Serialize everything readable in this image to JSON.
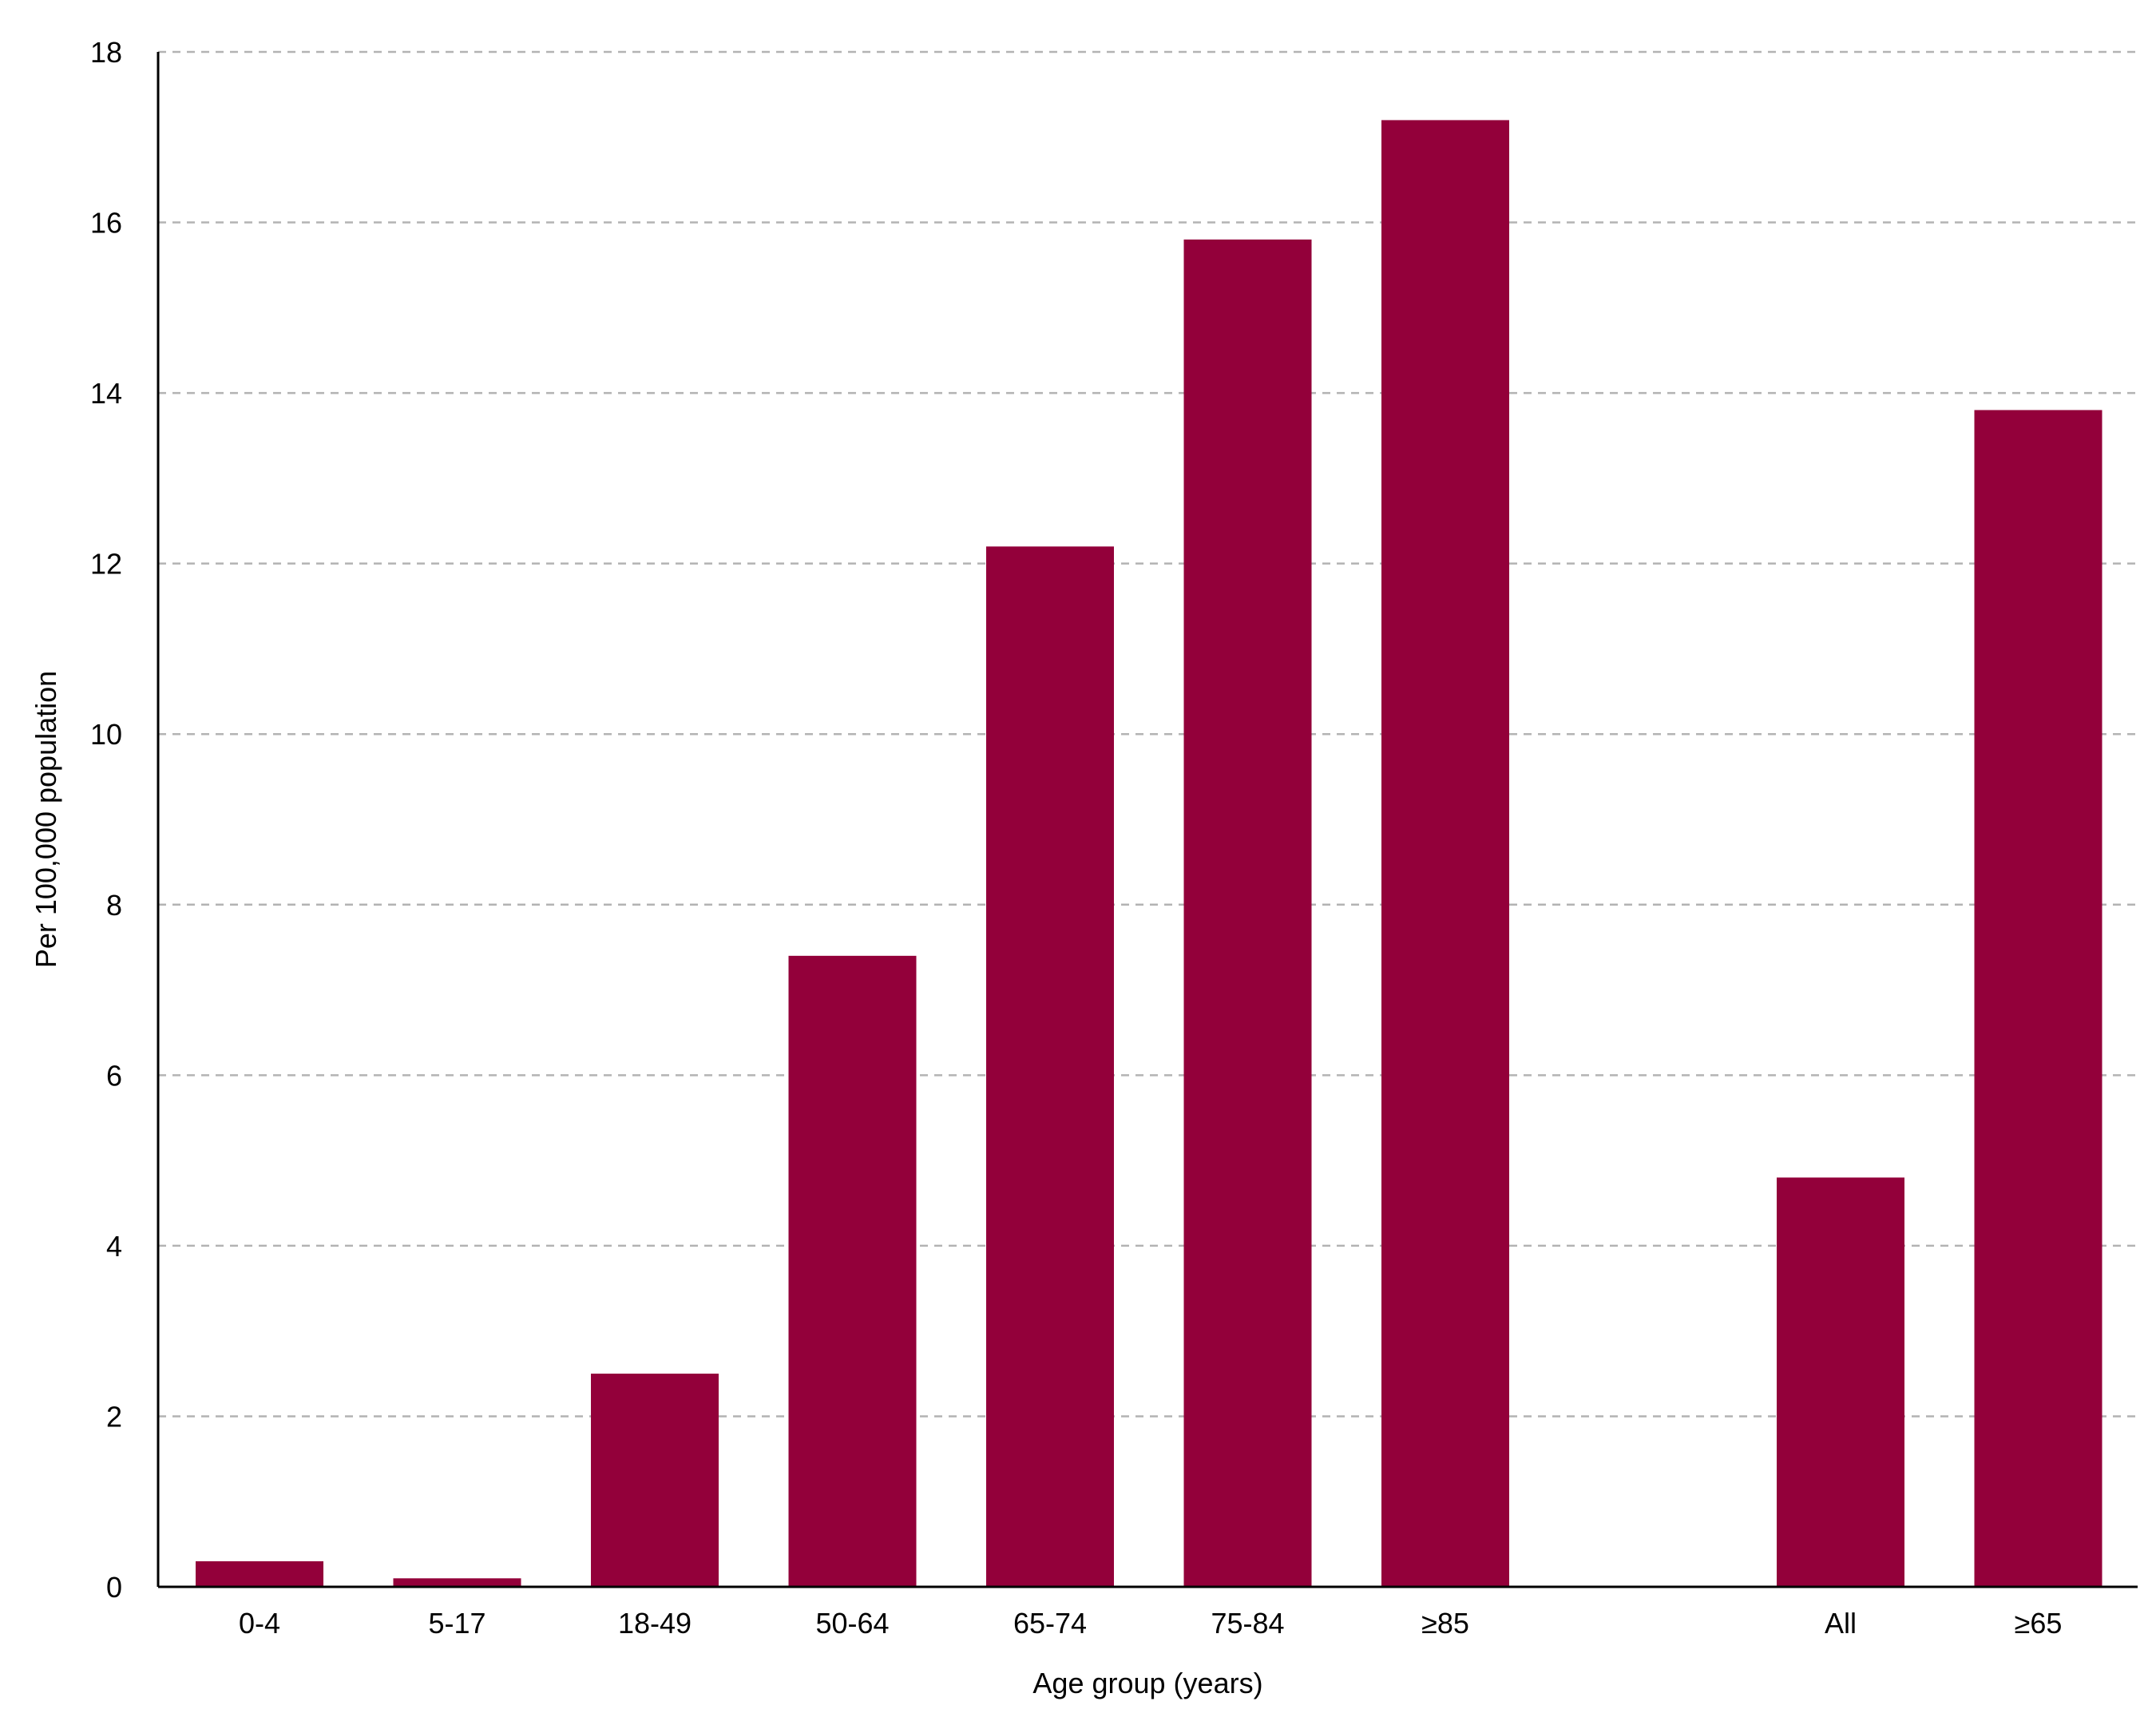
{
  "chart_data": {
    "type": "bar",
    "title": "",
    "xlabel": "Age group (years)",
    "ylabel": "Per 100,000 population",
    "categories": [
      "0-4",
      "5-17",
      "18-49",
      "50-64",
      "65-74",
      "75-84",
      "≥85",
      "",
      "All",
      "≥65"
    ],
    "values": [
      0.3,
      0.1,
      2.5,
      7.4,
      12.2,
      15.8,
      17.2,
      null,
      4.8,
      13.8
    ],
    "ylim": [
      0,
      18
    ],
    "yticks": [
      0,
      2,
      4,
      6,
      8,
      10,
      12,
      14,
      16,
      18
    ],
    "grid": "horizontal dashed",
    "legend": "none",
    "colors": {
      "bar": "#93003a",
      "grid": "#b3b3b3",
      "axis": "#000000"
    }
  }
}
